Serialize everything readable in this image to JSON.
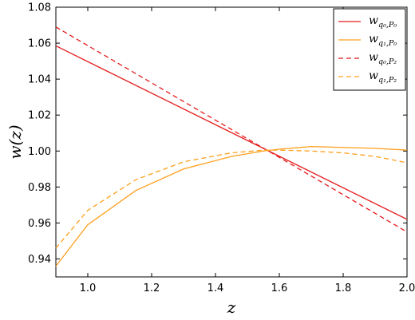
{
  "chart_data": {
    "type": "line",
    "xlabel": "z",
    "ylabel": "w(z)",
    "xlim": [
      0.9,
      2.0
    ],
    "ylim": [
      0.93,
      1.08
    ],
    "xticks": [
      1.0,
      1.2,
      1.4,
      1.6,
      1.8,
      2.0
    ],
    "xtick_labels": [
      "1.0",
      "1.2",
      "1.4",
      "1.6",
      "1.8",
      "2.0"
    ],
    "yticks": [
      0.94,
      0.96,
      0.98,
      1.0,
      1.02,
      1.04,
      1.06,
      1.08
    ],
    "ytick_labels": [
      "0.94",
      "0.96",
      "0.98",
      "1.00",
      "1.02",
      "1.04",
      "1.06",
      "1.08"
    ],
    "grid": false,
    "legend_position": "top-right",
    "series": [
      {
        "name": "w_{q0,P0}",
        "label_main": "w",
        "label_sub": "q₀,P₀",
        "color": "#e41a1c",
        "dash": "solid",
        "x": [
          0.9,
          2.0
        ],
        "y": [
          1.0585,
          0.962
        ]
      },
      {
        "name": "w_{q1,P0}",
        "label_main": "w",
        "label_sub": "q₁,P₀",
        "color": "#ff9f1c",
        "dash": "solid",
        "x": [
          0.9,
          1.0,
          1.15,
          1.3,
          1.45,
          1.55,
          1.6,
          1.7,
          1.8,
          1.9,
          2.0
        ],
        "y": [
          0.936,
          0.959,
          0.978,
          0.99,
          0.997,
          1.0,
          1.001,
          1.0025,
          1.002,
          1.0015,
          1.0005
        ]
      },
      {
        "name": "w_{q0,P2}",
        "label_main": "w",
        "label_sub": "q₀,P₂",
        "color": "#e41a1c",
        "dash": "dashed",
        "x": [
          0.9,
          2.0
        ],
        "y": [
          1.069,
          0.955
        ]
      },
      {
        "name": "w_{q1,P2}",
        "label_main": "w",
        "label_sub": "q₁,P₂",
        "color": "#ff9f1c",
        "dash": "dashed",
        "x": [
          0.9,
          1.0,
          1.15,
          1.3,
          1.45,
          1.55,
          1.6,
          1.7,
          1.8,
          1.9,
          2.0
        ],
        "y": [
          0.946,
          0.967,
          0.984,
          0.994,
          0.999,
          1.0005,
          1.0005,
          1.0,
          0.999,
          0.997,
          0.9935
        ]
      }
    ]
  }
}
